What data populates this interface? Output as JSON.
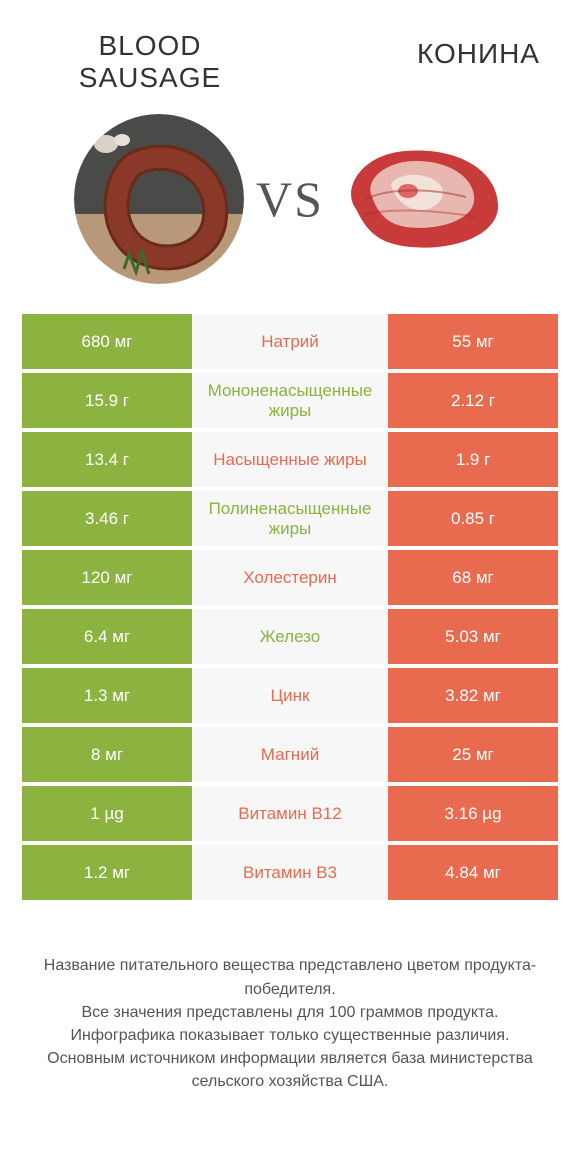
{
  "colors": {
    "green": "#8cb23f",
    "orange": "#e86a4f",
    "mid_bg": "#f7f7f7",
    "title": "#333333",
    "footer": "#555555"
  },
  "header": {
    "left_title": "BLOOD SAUSAGE",
    "right_title": "КОНИНА",
    "vs": "VS"
  },
  "rows": [
    {
      "left": "680 мг",
      "label": "Натрий",
      "right": "55 мг",
      "winner": "right"
    },
    {
      "left": "15.9 г",
      "label": "Мононенасыщенные жиры",
      "right": "2.12 г",
      "winner": "left"
    },
    {
      "left": "13.4 г",
      "label": "Насыщенные жиры",
      "right": "1.9 г",
      "winner": "right"
    },
    {
      "left": "3.46 г",
      "label": "Полиненасыщенные жиры",
      "right": "0.85 г",
      "winner": "left"
    },
    {
      "left": "120 мг",
      "label": "Холестерин",
      "right": "68 мг",
      "winner": "right"
    },
    {
      "left": "6.4 мг",
      "label": "Железо",
      "right": "5.03 мг",
      "winner": "left"
    },
    {
      "left": "1.3 мг",
      "label": "Цинк",
      "right": "3.82 мг",
      "winner": "right"
    },
    {
      "left": "8 мг",
      "label": "Магний",
      "right": "25 мг",
      "winner": "right"
    },
    {
      "left": "1 µg",
      "label": "Витамин B12",
      "right": "3.16 µg",
      "winner": "right"
    },
    {
      "left": "1.2 мг",
      "label": "Витамин B3",
      "right": "4.84 мг",
      "winner": "right"
    }
  ],
  "footer": {
    "line1": "Название питательного вещества представлено цветом продукта-победителя.",
    "line2": "Все значения представлены для 100 граммов продукта.",
    "line3": "Инфографика показывает только существенные различия.",
    "line4": "Основным источником информации является база министерства сельского хозяйства США."
  }
}
